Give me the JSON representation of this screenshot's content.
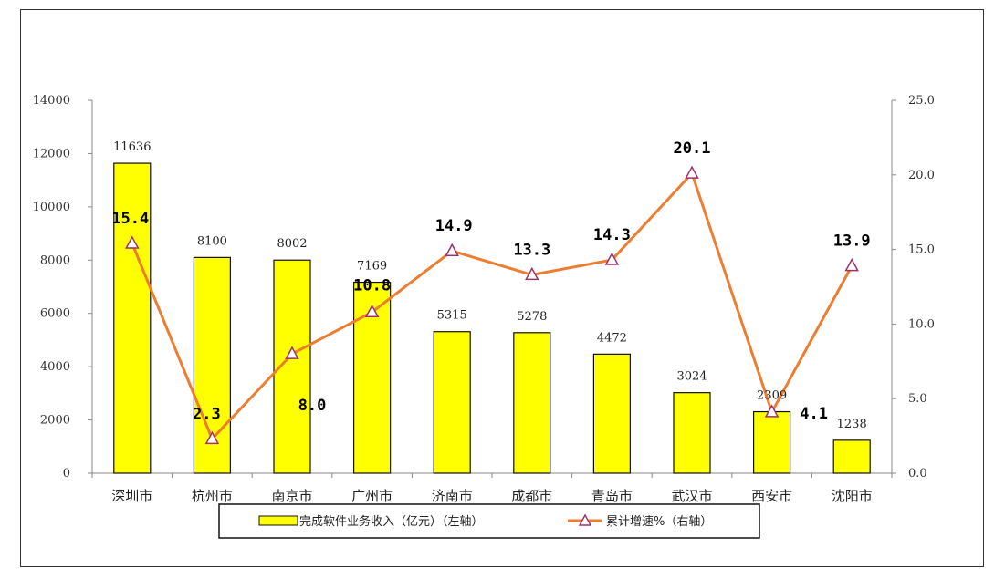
{
  "chart_data": {
    "type": "bar+line",
    "categories": [
      "深圳市",
      "杭州市",
      "南京市",
      "广州市",
      "济南市",
      "成都市",
      "青岛市",
      "武汉市",
      "西安市",
      "沈阳市"
    ],
    "bar_labels": [
      "11636",
      "8100",
      "8002",
      "7169",
      "5315",
      "5278",
      "4472",
      "3024",
      "2309",
      "1238"
    ],
    "line_labels": [
      "15.4",
      "2.3",
      "8.0",
      "10.8",
      "14.9",
      "13.3",
      "14.3",
      "20.1",
      "4.1",
      "13.9"
    ],
    "series": [
      {
        "name": "完成软件业务收入（亿元）（左轴）",
        "type": "bar",
        "axis": "left",
        "color": "#ffff00",
        "values": [
          11636,
          8100,
          8002,
          7169,
          5315,
          5278,
          4472,
          3024,
          2309,
          1238
        ]
      },
      {
        "name": "累计增速%（右轴）",
        "type": "line",
        "axis": "right",
        "color": "#ed7d31",
        "marker_color": "#a0306a",
        "values": [
          15.4,
          2.3,
          8.0,
          10.8,
          14.9,
          13.3,
          14.3,
          20.1,
          4.1,
          13.9
        ]
      }
    ],
    "y_left": {
      "min": 0,
      "max": 14000,
      "ticks": [
        "0",
        "2000",
        "4000",
        "6000",
        "8000",
        "10000",
        "12000",
        "14000"
      ]
    },
    "y_right": {
      "min": 0,
      "max": 25,
      "ticks": [
        "0.0",
        "5.0",
        "10.0",
        "15.0",
        "20.0",
        "25.0"
      ]
    },
    "grid": false,
    "legend": {
      "position": "bottom"
    }
  }
}
